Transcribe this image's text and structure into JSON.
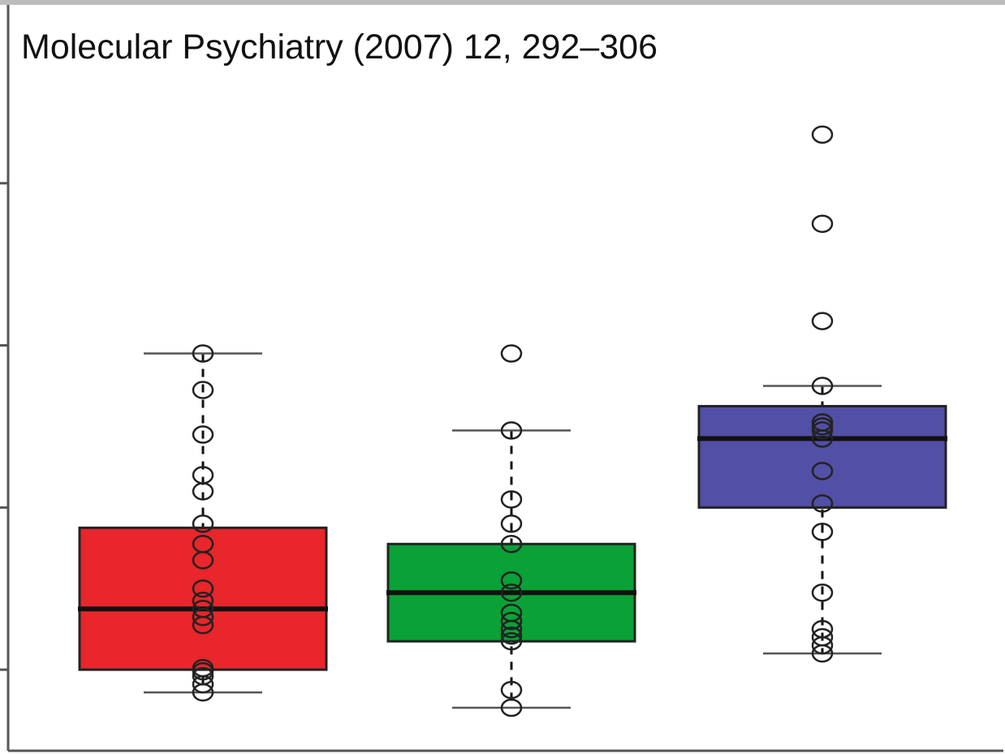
{
  "citation": "Molecular Psychiatry (2007) 12, 292–306",
  "chart_data": {
    "type": "box",
    "title": "",
    "xlabel": "",
    "ylabel": "",
    "ylim": [
      0,
      9.2
    ],
    "grid": false,
    "legend": "none",
    "y_ticks": [
      1,
      3,
      5,
      7
    ],
    "groups": [
      {
        "color": "#e8262b",
        "whisker_low": 0.72,
        "q1": 1.0,
        "median": 1.75,
        "q3": 2.75,
        "whisker_high": 4.9,
        "points": [
          0.72,
          0.82,
          0.92,
          0.98,
          1.02,
          1.55,
          1.65,
          1.75,
          1.85,
          2.0,
          2.35,
          2.55,
          2.8,
          3.2,
          3.4,
          3.9,
          4.45,
          4.9
        ]
      },
      {
        "color": "#0aa136",
        "whisker_low": 0.53,
        "q1": 1.35,
        "median": 1.95,
        "q3": 2.55,
        "whisker_high": 3.95,
        "points": [
          0.53,
          0.75,
          1.35,
          1.42,
          1.5,
          1.6,
          1.7,
          1.95,
          2.1,
          2.55,
          2.8,
          3.1,
          3.95
        ],
        "outliers": [
          4.9
        ]
      },
      {
        "color": "#524fa6",
        "whisker_low": 1.2,
        "q1": 3.0,
        "median": 3.85,
        "q3": 4.25,
        "whisker_high": 4.5,
        "points": [
          1.2,
          1.3,
          1.4,
          1.5,
          1.95,
          2.7,
          3.05,
          3.45,
          3.85,
          3.95,
          4.05,
          4.0,
          4.5
        ],
        "outliers": [
          5.3,
          6.5,
          7.6
        ]
      }
    ]
  }
}
